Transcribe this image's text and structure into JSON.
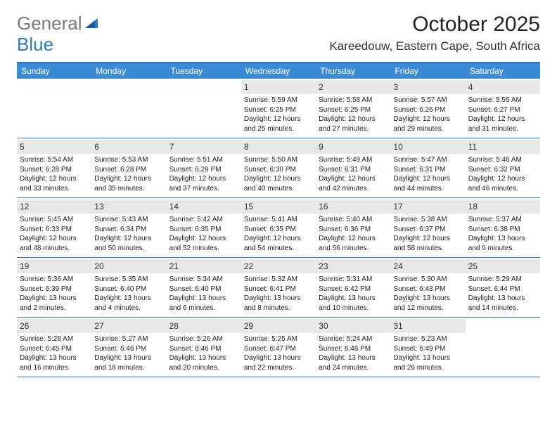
{
  "brand": {
    "part1": "General",
    "part2": "Blue"
  },
  "title": "October 2025",
  "location": "Kareedouw, Eastern Cape, South Africa",
  "style": {
    "accent": "#3b8bd4",
    "border": "#2b79c2",
    "dayband": "#e8e8e8",
    "text": "#222222",
    "logo_gray": "#7a7a7a"
  },
  "day_names": [
    "Sunday",
    "Monday",
    "Tuesday",
    "Wednesday",
    "Thursday",
    "Friday",
    "Saturday"
  ],
  "weeks": [
    [
      {
        "n": "",
        "empty": true,
        "sr": "",
        "ss": "",
        "dl": ""
      },
      {
        "n": "",
        "empty": true,
        "sr": "",
        "ss": "",
        "dl": ""
      },
      {
        "n": "",
        "empty": true,
        "sr": "",
        "ss": "",
        "dl": ""
      },
      {
        "n": "1",
        "sr": "Sunrise: 5:59 AM",
        "ss": "Sunset: 6:25 PM",
        "dl": "Daylight: 12 hours and 25 minutes."
      },
      {
        "n": "2",
        "sr": "Sunrise: 5:58 AM",
        "ss": "Sunset: 6:25 PM",
        "dl": "Daylight: 12 hours and 27 minutes."
      },
      {
        "n": "3",
        "sr": "Sunrise: 5:57 AM",
        "ss": "Sunset: 6:26 PM",
        "dl": "Daylight: 12 hours and 29 minutes."
      },
      {
        "n": "4",
        "sr": "Sunrise: 5:55 AM",
        "ss": "Sunset: 6:27 PM",
        "dl": "Daylight: 12 hours and 31 minutes."
      }
    ],
    [
      {
        "n": "5",
        "sr": "Sunrise: 5:54 AM",
        "ss": "Sunset: 6:28 PM",
        "dl": "Daylight: 12 hours and 33 minutes."
      },
      {
        "n": "6",
        "sr": "Sunrise: 5:53 AM",
        "ss": "Sunset: 6:28 PM",
        "dl": "Daylight: 12 hours and 35 minutes."
      },
      {
        "n": "7",
        "sr": "Sunrise: 5:51 AM",
        "ss": "Sunset: 6:29 PM",
        "dl": "Daylight: 12 hours and 37 minutes."
      },
      {
        "n": "8",
        "sr": "Sunrise: 5:50 AM",
        "ss": "Sunset: 6:30 PM",
        "dl": "Daylight: 12 hours and 40 minutes."
      },
      {
        "n": "9",
        "sr": "Sunrise: 5:49 AM",
        "ss": "Sunset: 6:31 PM",
        "dl": "Daylight: 12 hours and 42 minutes."
      },
      {
        "n": "10",
        "sr": "Sunrise: 5:47 AM",
        "ss": "Sunset: 6:31 PM",
        "dl": "Daylight: 12 hours and 44 minutes."
      },
      {
        "n": "11",
        "sr": "Sunrise: 5:46 AM",
        "ss": "Sunset: 6:32 PM",
        "dl": "Daylight: 12 hours and 46 minutes."
      }
    ],
    [
      {
        "n": "12",
        "sr": "Sunrise: 5:45 AM",
        "ss": "Sunset: 6:33 PM",
        "dl": "Daylight: 12 hours and 48 minutes."
      },
      {
        "n": "13",
        "sr": "Sunrise: 5:43 AM",
        "ss": "Sunset: 6:34 PM",
        "dl": "Daylight: 12 hours and 50 minutes."
      },
      {
        "n": "14",
        "sr": "Sunrise: 5:42 AM",
        "ss": "Sunset: 6:35 PM",
        "dl": "Daylight: 12 hours and 52 minutes."
      },
      {
        "n": "15",
        "sr": "Sunrise: 5:41 AM",
        "ss": "Sunset: 6:35 PM",
        "dl": "Daylight: 12 hours and 54 minutes."
      },
      {
        "n": "16",
        "sr": "Sunrise: 5:40 AM",
        "ss": "Sunset: 6:36 PM",
        "dl": "Daylight: 12 hours and 56 minutes."
      },
      {
        "n": "17",
        "sr": "Sunrise: 5:38 AM",
        "ss": "Sunset: 6:37 PM",
        "dl": "Daylight: 12 hours and 58 minutes."
      },
      {
        "n": "18",
        "sr": "Sunrise: 5:37 AM",
        "ss": "Sunset: 6:38 PM",
        "dl": "Daylight: 13 hours and 0 minutes."
      }
    ],
    [
      {
        "n": "19",
        "sr": "Sunrise: 5:36 AM",
        "ss": "Sunset: 6:39 PM",
        "dl": "Daylight: 13 hours and 2 minutes."
      },
      {
        "n": "20",
        "sr": "Sunrise: 5:35 AM",
        "ss": "Sunset: 6:40 PM",
        "dl": "Daylight: 13 hours and 4 minutes."
      },
      {
        "n": "21",
        "sr": "Sunrise: 5:34 AM",
        "ss": "Sunset: 6:40 PM",
        "dl": "Daylight: 13 hours and 6 minutes."
      },
      {
        "n": "22",
        "sr": "Sunrise: 5:32 AM",
        "ss": "Sunset: 6:41 PM",
        "dl": "Daylight: 13 hours and 8 minutes."
      },
      {
        "n": "23",
        "sr": "Sunrise: 5:31 AM",
        "ss": "Sunset: 6:42 PM",
        "dl": "Daylight: 13 hours and 10 minutes."
      },
      {
        "n": "24",
        "sr": "Sunrise: 5:30 AM",
        "ss": "Sunset: 6:43 PM",
        "dl": "Daylight: 13 hours and 12 minutes."
      },
      {
        "n": "25",
        "sr": "Sunrise: 5:29 AM",
        "ss": "Sunset: 6:44 PM",
        "dl": "Daylight: 13 hours and 14 minutes."
      }
    ],
    [
      {
        "n": "26",
        "sr": "Sunrise: 5:28 AM",
        "ss": "Sunset: 6:45 PM",
        "dl": "Daylight: 13 hours and 16 minutes."
      },
      {
        "n": "27",
        "sr": "Sunrise: 5:27 AM",
        "ss": "Sunset: 6:46 PM",
        "dl": "Daylight: 13 hours and 18 minutes."
      },
      {
        "n": "28",
        "sr": "Sunrise: 5:26 AM",
        "ss": "Sunset: 6:46 PM",
        "dl": "Daylight: 13 hours and 20 minutes."
      },
      {
        "n": "29",
        "sr": "Sunrise: 5:25 AM",
        "ss": "Sunset: 6:47 PM",
        "dl": "Daylight: 13 hours and 22 minutes."
      },
      {
        "n": "30",
        "sr": "Sunrise: 5:24 AM",
        "ss": "Sunset: 6:48 PM",
        "dl": "Daylight: 13 hours and 24 minutes."
      },
      {
        "n": "31",
        "sr": "Sunrise: 5:23 AM",
        "ss": "Sunset: 6:49 PM",
        "dl": "Daylight: 13 hours and 26 minutes."
      },
      {
        "n": "",
        "empty": true,
        "sr": "",
        "ss": "",
        "dl": ""
      }
    ]
  ]
}
